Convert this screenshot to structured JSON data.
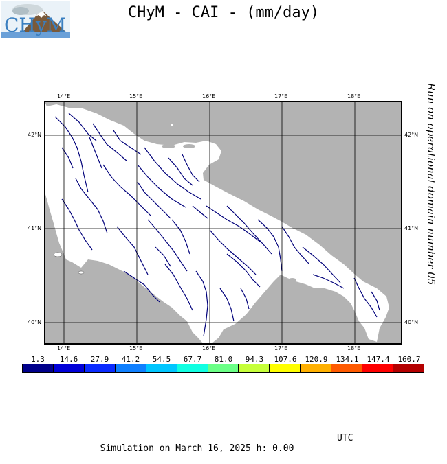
{
  "logo": {
    "text": "CHyM"
  },
  "title": "CHyM - CAI - (mm/day)",
  "side_caption": "Run on operational domain number 05",
  "map": {
    "lon_labels_top": [
      "14°E",
      "15°E",
      "16°E",
      "17°E",
      "18°E"
    ],
    "lon_labels_bottom": [
      "14°E",
      "15°E",
      "16°E",
      "17°E",
      "18°E"
    ],
    "lat_labels_left": [
      "42°N",
      "41°N",
      "40°N"
    ],
    "lat_labels_right": [
      "42°N",
      "41°N",
      "40°N"
    ],
    "colors": {
      "sea": "#b3b3b3",
      "land": "#ffffff",
      "river": "#00007a",
      "grid": "#000000"
    }
  },
  "colorbar": {
    "labels": [
      "1.3",
      "14.6",
      "27.9",
      "41.2",
      "54.5",
      "67.7",
      "81.0",
      "94.3",
      "107.6",
      "120.9",
      "134.1",
      "147.4",
      "160.7"
    ],
    "colors": [
      "#00008b",
      "#0000d8",
      "#0a2bff",
      "#0f80ff",
      "#00c6ff",
      "#10ffe2",
      "#6aff86",
      "#c6ff3a",
      "#ffff00",
      "#ffb000",
      "#ff5a00",
      "#ff0000",
      "#b40000"
    ]
  },
  "footer": {
    "simulation": "Simulation on March 16, 2025 h: 0.00",
    "tz": "UTC"
  }
}
